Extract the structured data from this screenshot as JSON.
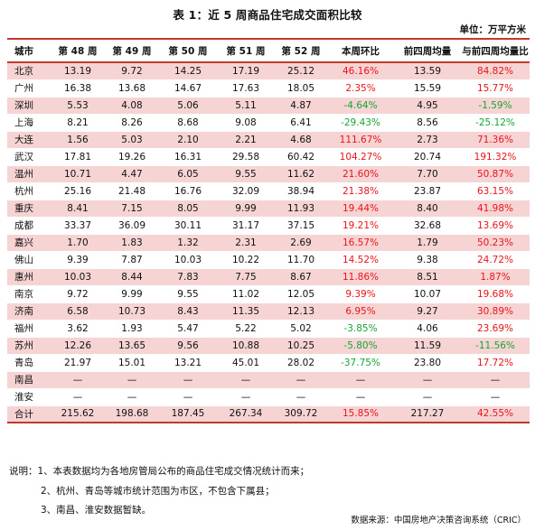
{
  "title": "表 1：近 5 周商品住宅成交面积比较",
  "unit": "单位：万平方米",
  "headers": [
    "城市",
    "第 48 周",
    "第 49 周",
    "第 50 周",
    "第 51 周",
    "第 52 周",
    "本周环比",
    "前四周均量",
    "与前四周均量比"
  ],
  "rows": [
    {
      "city": "北京",
      "w48": "13.19",
      "w49": "9.72",
      "w50": "14.25",
      "w51": "17.19",
      "w52": "25.12",
      "wow": "46.16%",
      "avg4": "13.59",
      "vsavg": "84.82%"
    },
    {
      "city": "广州",
      "w48": "16.38",
      "w49": "13.68",
      "w50": "14.67",
      "w51": "17.63",
      "w52": "18.05",
      "wow": "2.35%",
      "avg4": "15.59",
      "vsavg": "15.77%"
    },
    {
      "city": "深圳",
      "w48": "5.53",
      "w49": "4.08",
      "w50": "5.06",
      "w51": "5.11",
      "w52": "4.87",
      "wow": "-4.64%",
      "avg4": "4.95",
      "vsavg": "-1.59%"
    },
    {
      "city": "上海",
      "w48": "8.21",
      "w49": "8.26",
      "w50": "8.68",
      "w51": "9.08",
      "w52": "6.41",
      "wow": "-29.43%",
      "avg4": "8.56",
      "vsavg": "-25.12%"
    },
    {
      "city": "大连",
      "w48": "1.56",
      "w49": "5.03",
      "w50": "2.10",
      "w51": "2.21",
      "w52": "4.68",
      "wow": "111.67%",
      "avg4": "2.73",
      "vsavg": "71.36%"
    },
    {
      "city": "武汉",
      "w48": "17.81",
      "w49": "19.26",
      "w50": "16.31",
      "w51": "29.58",
      "w52": "60.42",
      "wow": "104.27%",
      "avg4": "20.74",
      "vsavg": "191.32%"
    },
    {
      "city": "温州",
      "w48": "10.71",
      "w49": "4.47",
      "w50": "6.05",
      "w51": "9.55",
      "w52": "11.62",
      "wow": "21.60%",
      "avg4": "7.70",
      "vsavg": "50.87%"
    },
    {
      "city": "杭州",
      "w48": "25.16",
      "w49": "21.48",
      "w50": "16.76",
      "w51": "32.09",
      "w52": "38.94",
      "wow": "21.38%",
      "avg4": "23.87",
      "vsavg": "63.15%"
    },
    {
      "city": "重庆",
      "w48": "8.41",
      "w49": "7.15",
      "w50": "8.05",
      "w51": "9.99",
      "w52": "11.93",
      "wow": "19.44%",
      "avg4": "8.40",
      "vsavg": "41.98%"
    },
    {
      "city": "成都",
      "w48": "33.37",
      "w49": "36.09",
      "w50": "30.11",
      "w51": "31.17",
      "w52": "37.15",
      "wow": "19.21%",
      "avg4": "32.68",
      "vsavg": "13.69%"
    },
    {
      "city": "嘉兴",
      "w48": "1.70",
      "w49": "1.83",
      "w50": "1.32",
      "w51": "2.31",
      "w52": "2.69",
      "wow": "16.57%",
      "avg4": "1.79",
      "vsavg": "50.23%"
    },
    {
      "city": "佛山",
      "w48": "9.39",
      "w49": "7.87",
      "w50": "10.03",
      "w51": "10.22",
      "w52": "11.70",
      "wow": "14.52%",
      "avg4": "9.38",
      "vsavg": "24.72%"
    },
    {
      "city": "惠州",
      "w48": "10.03",
      "w49": "8.44",
      "w50": "7.83",
      "w51": "7.75",
      "w52": "8.67",
      "wow": "11.86%",
      "avg4": "8.51",
      "vsavg": "1.87%"
    },
    {
      "city": "南京",
      "w48": "9.72",
      "w49": "9.99",
      "w50": "9.55",
      "w51": "11.02",
      "w52": "12.05",
      "wow": "9.39%",
      "avg4": "10.07",
      "vsavg": "19.68%"
    },
    {
      "city": "济南",
      "w48": "6.58",
      "w49": "10.73",
      "w50": "8.43",
      "w51": "11.35",
      "w52": "12.13",
      "wow": "6.95%",
      "avg4": "9.27",
      "vsavg": "30.89%"
    },
    {
      "city": "福州",
      "w48": "3.62",
      "w49": "1.93",
      "w50": "5.47",
      "w51": "5.22",
      "w52": "5.02",
      "wow": "-3.85%",
      "avg4": "4.06",
      "vsavg": "23.69%"
    },
    {
      "city": "苏州",
      "w48": "12.26",
      "w49": "13.65",
      "w50": "9.56",
      "w51": "10.88",
      "w52": "10.25",
      "wow": "-5.80%",
      "avg4": "11.59",
      "vsavg": "-11.56%"
    },
    {
      "city": "青岛",
      "w48": "21.97",
      "w49": "15.01",
      "w50": "13.21",
      "w51": "45.01",
      "w52": "28.02",
      "wow": "-37.75%",
      "avg4": "23.80",
      "vsavg": "17.72%"
    },
    {
      "city": "南昌",
      "w48": "—",
      "w49": "—",
      "w50": "—",
      "w51": "—",
      "w52": "—",
      "wow": "—",
      "avg4": "—",
      "vsavg": "—"
    },
    {
      "city": "淮安",
      "w48": "—",
      "w49": "—",
      "w50": "—",
      "w51": "—",
      "w52": "—",
      "wow": "—",
      "avg4": "—",
      "vsavg": "—"
    }
  ],
  "total": {
    "city": "合计",
    "w48": "215.62",
    "w49": "198.68",
    "w50": "187.45",
    "w51": "267.34",
    "w52": "309.72",
    "wow": "15.85%",
    "avg4": "217.27",
    "vsavg": "42.55%"
  },
  "notes": [
    "说明：1、本表数据均为各地房管局公布的商品住宅成交情况统计而来；",
    "2、杭州、青岛等城市统计范围为市区，不包含下属县；",
    "3、南昌、淮安数据暂缺。"
  ],
  "source": "数据来源：中国房地产决策咨询系统（CRIC）",
  "colors": {
    "positive": "#e8141a",
    "negative": "#17a534",
    "band": "#f7d4d4",
    "rule": "#c0392b"
  }
}
